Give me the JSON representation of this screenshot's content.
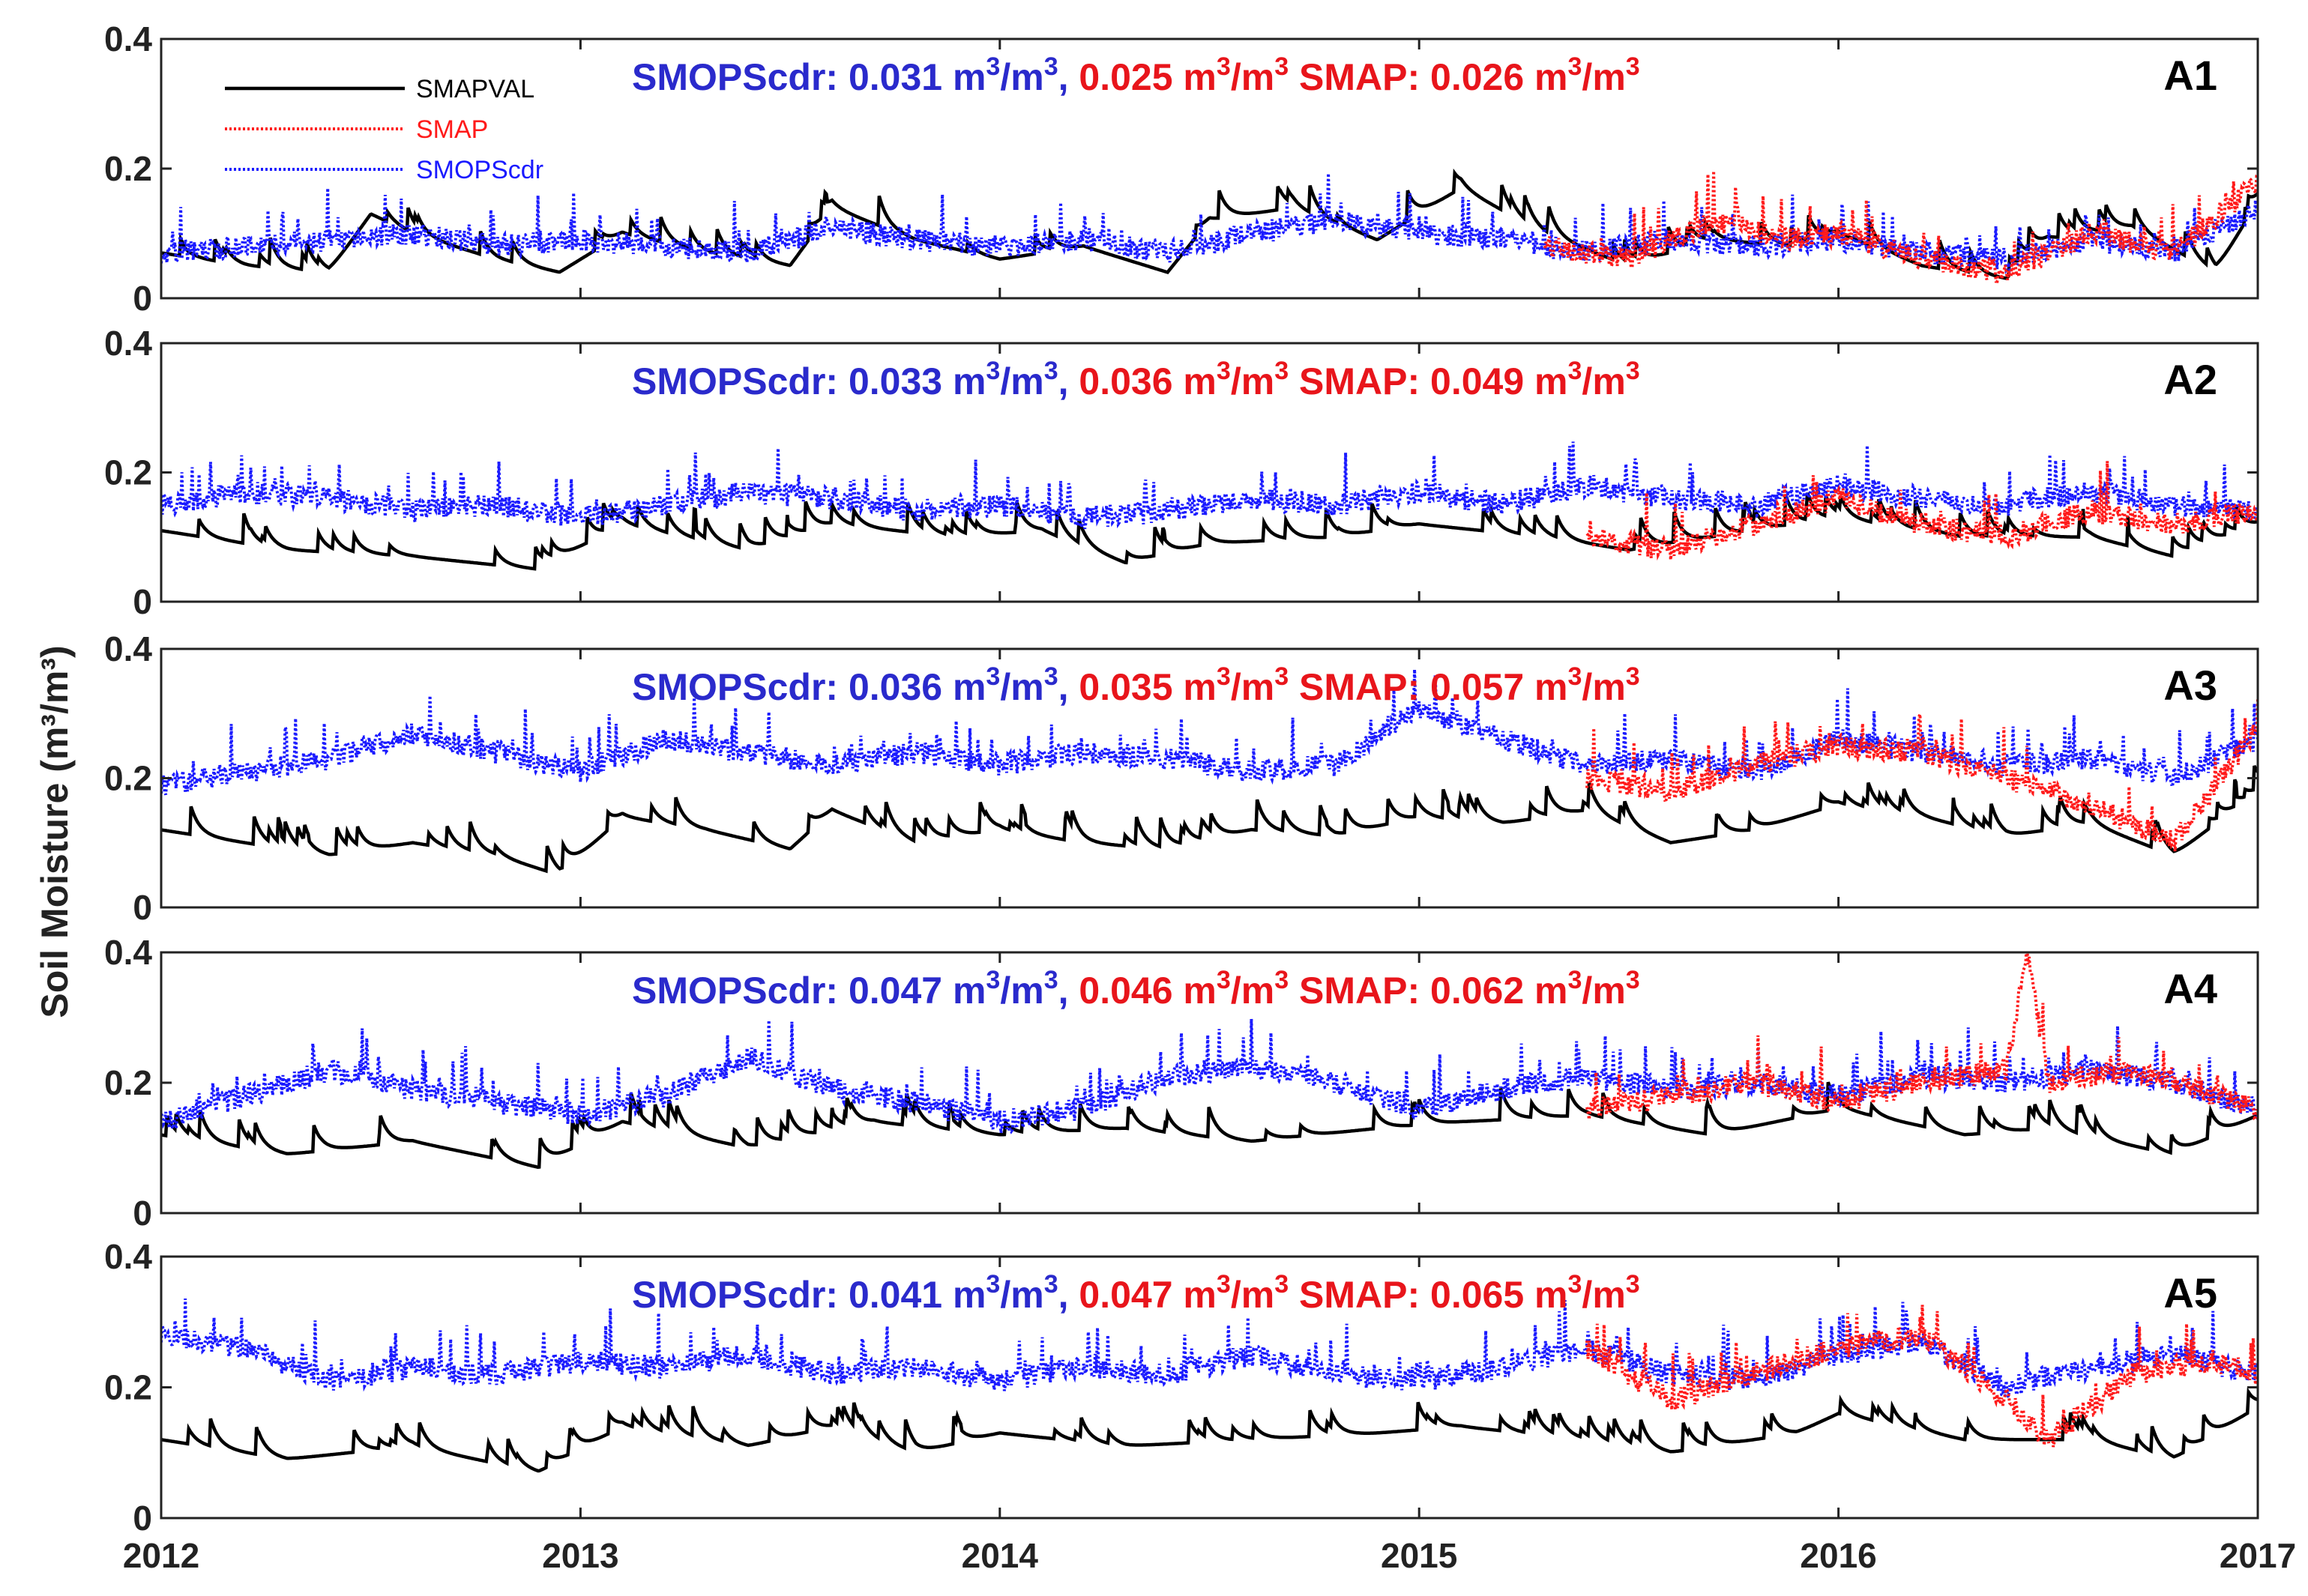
{
  "chart_data": {
    "type": "line",
    "ylabel": "Soil Moisture (m³/m³)",
    "ylim": [
      0,
      0.4
    ],
    "yticks": [
      "0",
      "0.2",
      "0.4"
    ],
    "xlim": [
      2012,
      2017
    ],
    "xticks": [
      "2012",
      "2013",
      "2014",
      "2015",
      "2016",
      "2017"
    ],
    "legend": {
      "position": "top-left of panel A1",
      "entries": [
        "SMAPVAL",
        "SMAP",
        "SMOPScdr"
      ]
    },
    "colors": {
      "SMAPVAL": "#000000",
      "SMAP": "#ff1a1a",
      "SMOPScdr": "#1a1aff",
      "blue_text": "#2a2acc",
      "red_text": "#e8151b"
    },
    "panels": [
      {
        "id": "A1",
        "stats": {
          "smopscdr_label": "SMOPScdr: 0.031 m",
          "pair_value": "0.025 m",
          "smap_label": "SMAP: 0.026 m"
        },
        "SMAPVAL": {
          "x": [
            2012.0,
            2012.2,
            2012.4,
            2012.5,
            2012.6,
            2012.8,
            2012.95,
            2013.1,
            2013.3,
            2013.5,
            2013.6,
            2013.8,
            2014.0,
            2014.2,
            2014.4,
            2014.5,
            2014.7,
            2014.9,
            2015.1,
            2015.3,
            2015.5,
            2015.7,
            2015.9,
            2016.0,
            2016.2,
            2016.4,
            2016.5,
            2016.7,
            2016.9,
            2017.0
          ],
          "y": [
            0.07,
            0.05,
            0.04,
            0.13,
            0.1,
            0.06,
            0.04,
            0.1,
            0.07,
            0.05,
            0.14,
            0.09,
            0.06,
            0.08,
            0.04,
            0.12,
            0.14,
            0.09,
            0.17,
            0.1,
            0.05,
            0.09,
            0.08,
            0.1,
            0.05,
            0.03,
            0.09,
            0.11,
            0.04,
            0.15
          ]
        },
        "SMAP": {
          "x": [
            2015.3,
            2015.5,
            2015.7,
            2015.9,
            2016.0,
            2016.2,
            2016.4,
            2016.6,
            2016.8,
            2017.0
          ],
          "y": [
            0.08,
            0.06,
            0.12,
            0.09,
            0.1,
            0.06,
            0.04,
            0.1,
            0.07,
            0.18
          ]
        },
        "SMOPScdr": {
          "x": [
            2012.0,
            2012.2,
            2012.4,
            2012.6,
            2012.8,
            2013.0,
            2013.2,
            2013.4,
            2013.6,
            2013.8,
            2014.0,
            2014.2,
            2014.4,
            2014.6,
            2014.8,
            2015.0,
            2015.2,
            2015.4,
            2015.6,
            2015.8,
            2016.0,
            2016.2,
            2016.4,
            2016.6,
            2016.8,
            2017.0
          ],
          "y": [
            0.07,
            0.08,
            0.09,
            0.1,
            0.08,
            0.09,
            0.08,
            0.07,
            0.11,
            0.09,
            0.08,
            0.09,
            0.07,
            0.1,
            0.12,
            0.1,
            0.09,
            0.07,
            0.09,
            0.08,
            0.09,
            0.07,
            0.06,
            0.09,
            0.07,
            0.14
          ]
        }
      },
      {
        "id": "A2",
        "stats": {
          "smopscdr_label": "SMOPScdr: 0.033 m",
          "pair_value": "0.036 m",
          "smap_label": "SMAP: 0.049 m"
        },
        "SMAPVAL": {
          "x": [
            2012.0,
            2012.3,
            2012.6,
            2012.9,
            2013.1,
            2013.4,
            2013.6,
            2013.9,
            2014.1,
            2014.3,
            2014.5,
            2014.8,
            2015.0,
            2015.3,
            2015.5,
            2015.8,
            2016.0,
            2016.3,
            2016.6,
            2016.8,
            2017.0
          ],
          "y": [
            0.11,
            0.08,
            0.07,
            0.05,
            0.12,
            0.08,
            0.12,
            0.1,
            0.11,
            0.06,
            0.09,
            0.1,
            0.12,
            0.1,
            0.08,
            0.11,
            0.13,
            0.1,
            0.1,
            0.07,
            0.12
          ]
        },
        "SMAP": {
          "x": [
            2015.4,
            2015.6,
            2015.8,
            2016.0,
            2016.2,
            2016.4,
            2016.6,
            2016.8,
            2017.0
          ],
          "y": [
            0.1,
            0.08,
            0.12,
            0.16,
            0.12,
            0.1,
            0.14,
            0.12,
            0.14
          ]
        },
        "SMOPScdr": {
          "x": [
            2012.0,
            2012.2,
            2012.4,
            2012.6,
            2012.8,
            2013.0,
            2013.2,
            2013.4,
            2013.6,
            2013.8,
            2014.0,
            2014.2,
            2014.4,
            2014.6,
            2014.8,
            2015.0,
            2015.2,
            2015.4,
            2015.6,
            2015.8,
            2016.0,
            2016.2,
            2016.4,
            2016.6,
            2016.8,
            2017.0
          ],
          "y": [
            0.15,
            0.17,
            0.16,
            0.14,
            0.15,
            0.13,
            0.15,
            0.17,
            0.16,
            0.14,
            0.15,
            0.13,
            0.14,
            0.16,
            0.15,
            0.17,
            0.15,
            0.18,
            0.16,
            0.15,
            0.18,
            0.16,
            0.15,
            0.17,
            0.15,
            0.14
          ]
        }
      },
      {
        "id": "A3",
        "stats": {
          "smopscdr_label": "SMOPScdr: 0.036 m",
          "pair_value": "0.035 m",
          "smap_label": "SMAP: 0.057 m"
        },
        "SMAPVAL": {
          "x": [
            2012.0,
            2012.2,
            2012.4,
            2012.6,
            2012.8,
            2012.95,
            2013.1,
            2013.3,
            2013.5,
            2013.6,
            2013.8,
            2014.0,
            2014.2,
            2014.4,
            2014.6,
            2014.8,
            2015.0,
            2015.2,
            2015.4,
            2015.6,
            2015.8,
            2016.0,
            2016.2,
            2016.4,
            2016.6,
            2016.8,
            2017.0
          ],
          "y": [
            0.12,
            0.1,
            0.08,
            0.1,
            0.08,
            0.05,
            0.14,
            0.12,
            0.09,
            0.15,
            0.1,
            0.12,
            0.1,
            0.09,
            0.12,
            0.11,
            0.14,
            0.13,
            0.15,
            0.1,
            0.12,
            0.16,
            0.14,
            0.11,
            0.13,
            0.08,
            0.18
          ]
        },
        "SMAP": {
          "x": [
            2015.4,
            2015.6,
            2015.8,
            2016.0,
            2016.2,
            2016.4,
            2016.6,
            2016.8,
            2017.0
          ],
          "y": [
            0.2,
            0.18,
            0.22,
            0.25,
            0.24,
            0.2,
            0.16,
            0.1,
            0.28
          ]
        },
        "SMOPScdr": {
          "x": [
            2012.0,
            2012.2,
            2012.4,
            2012.6,
            2012.8,
            2013.0,
            2013.2,
            2013.4,
            2013.6,
            2013.8,
            2014.0,
            2014.2,
            2014.4,
            2014.6,
            2014.8,
            2015.0,
            2015.2,
            2015.4,
            2015.6,
            2015.8,
            2016.0,
            2016.2,
            2016.4,
            2016.6,
            2016.8,
            2017.0
          ],
          "y": [
            0.19,
            0.21,
            0.23,
            0.27,
            0.24,
            0.21,
            0.26,
            0.24,
            0.22,
            0.24,
            0.22,
            0.24,
            0.23,
            0.21,
            0.22,
            0.31,
            0.26,
            0.22,
            0.23,
            0.21,
            0.26,
            0.24,
            0.22,
            0.23,
            0.2,
            0.26
          ]
        }
      },
      {
        "id": "A4",
        "stats": {
          "smopscdr_label": "SMOPScdr: 0.047 m",
          "pair_value": "0.046 m",
          "smap_label": "SMAP: 0.062 m"
        },
        "SMAPVAL": {
          "x": [
            2012.0,
            2012.3,
            2012.6,
            2012.9,
            2013.1,
            2013.4,
            2013.7,
            2014.0,
            2014.3,
            2014.6,
            2014.9,
            2015.1,
            2015.4,
            2015.7,
            2016.0,
            2016.3,
            2016.5,
            2016.8,
            2017.0
          ],
          "y": [
            0.12,
            0.09,
            0.11,
            0.07,
            0.14,
            0.1,
            0.14,
            0.12,
            0.13,
            0.11,
            0.13,
            0.14,
            0.15,
            0.12,
            0.16,
            0.12,
            0.13,
            0.09,
            0.15
          ]
        },
        "SMAP": {
          "x": [
            2015.4,
            2015.6,
            2015.8,
            2016.0,
            2016.2,
            2016.4,
            2016.45,
            2016.5,
            2016.7,
            2016.9,
            2017.0
          ],
          "y": [
            0.16,
            0.18,
            0.2,
            0.17,
            0.2,
            0.22,
            0.4,
            0.2,
            0.22,
            0.18,
            0.16
          ]
        },
        "SMOPScdr": {
          "x": [
            2012.0,
            2012.2,
            2012.4,
            2012.6,
            2012.8,
            2013.0,
            2013.2,
            2013.4,
            2013.6,
            2013.8,
            2014.0,
            2014.2,
            2014.4,
            2014.6,
            2014.8,
            2015.0,
            2015.2,
            2015.4,
            2015.6,
            2015.8,
            2016.0,
            2016.2,
            2016.4,
            2016.6,
            2016.8,
            2017.0
          ],
          "y": [
            0.14,
            0.18,
            0.22,
            0.19,
            0.17,
            0.15,
            0.18,
            0.24,
            0.19,
            0.17,
            0.14,
            0.16,
            0.21,
            0.22,
            0.2,
            0.16,
            0.19,
            0.21,
            0.19,
            0.2,
            0.18,
            0.21,
            0.2,
            0.22,
            0.2,
            0.16
          ]
        }
      },
      {
        "id": "A5",
        "stats": {
          "smopscdr_label": "SMOPScdr: 0.041 m",
          "pair_value": "0.047 m",
          "smap_label": "SMAP: 0.065 m"
        },
        "SMAPVAL": {
          "x": [
            2012.0,
            2012.3,
            2012.6,
            2012.9,
            2013.1,
            2013.4,
            2013.6,
            2013.8,
            2014.0,
            2014.3,
            2014.6,
            2014.9,
            2015.1,
            2015.4,
            2015.6,
            2015.9,
            2016.0,
            2016.3,
            2016.6,
            2016.8,
            2017.0
          ],
          "y": [
            0.12,
            0.09,
            0.11,
            0.07,
            0.14,
            0.11,
            0.14,
            0.1,
            0.13,
            0.11,
            0.12,
            0.13,
            0.14,
            0.12,
            0.1,
            0.13,
            0.16,
            0.12,
            0.12,
            0.09,
            0.17
          ]
        },
        "SMAP": {
          "x": [
            2015.4,
            2015.6,
            2015.8,
            2016.0,
            2016.2,
            2016.4,
            2016.5,
            2016.7,
            2016.9,
            2017.0
          ],
          "y": [
            0.26,
            0.18,
            0.22,
            0.26,
            0.28,
            0.18,
            0.12,
            0.22,
            0.24,
            0.22
          ]
        },
        "SMOPScdr": {
          "x": [
            2012.0,
            2012.2,
            2012.4,
            2012.6,
            2012.8,
            2013.0,
            2013.2,
            2013.4,
            2013.6,
            2013.8,
            2014.0,
            2014.2,
            2014.4,
            2014.6,
            2014.8,
            2015.0,
            2015.2,
            2015.4,
            2015.6,
            2015.8,
            2016.0,
            2016.2,
            2016.4,
            2016.6,
            2016.8,
            2017.0
          ],
          "y": [
            0.28,
            0.26,
            0.21,
            0.23,
            0.22,
            0.24,
            0.23,
            0.25,
            0.22,
            0.23,
            0.21,
            0.23,
            0.22,
            0.25,
            0.22,
            0.21,
            0.23,
            0.26,
            0.22,
            0.21,
            0.25,
            0.27,
            0.2,
            0.23,
            0.25,
            0.22
          ]
        }
      }
    ]
  }
}
